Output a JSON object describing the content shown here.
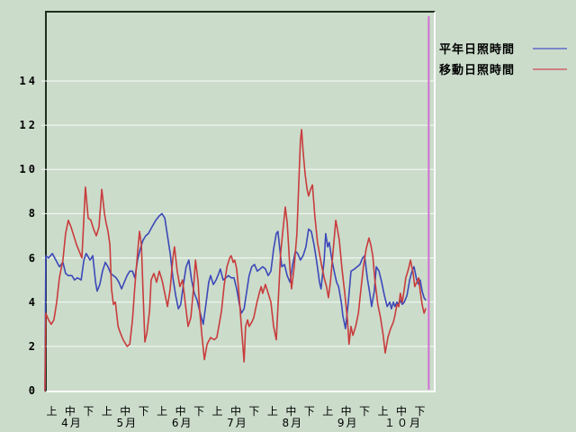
{
  "page": {
    "background": "#cbdccb"
  },
  "legend": {
    "items": [
      {
        "label": "平年日照時間",
        "color": "#7b86c8"
      },
      {
        "label": "移動日照時間",
        "color": "#cf8080"
      }
    ]
  },
  "chart_data": {
    "type": "line",
    "title": "",
    "xlabel": "",
    "ylabel": "",
    "ylim": [
      0,
      17.2
    ],
    "yticks": [
      0,
      2,
      4,
      6,
      8,
      10,
      12,
      14
    ],
    "grid": "horizontal white gridlines at even values",
    "legend_position": "top-right",
    "x_axis": {
      "dekads": [
        "上",
        "中",
        "下"
      ],
      "months": [
        "4月",
        "5月",
        "6月",
        "7月",
        "8月",
        "9月",
        "１０月"
      ],
      "num_ticks": 21
    },
    "marker_line": {
      "color": "#d26fd2",
      "x_frac": 0.987
    },
    "series": [
      {
        "name": "平年日照時間",
        "color": "#3c48b8",
        "points": [
          [
            0,
            0
          ],
          [
            0.002,
            6.1
          ],
          [
            0.009,
            6.0
          ],
          [
            0.019,
            6.2
          ],
          [
            0.025,
            6.0
          ],
          [
            0.037,
            5.6
          ],
          [
            0.046,
            5.8
          ],
          [
            0.053,
            5.3
          ],
          [
            0.06,
            5.2
          ],
          [
            0.069,
            5.2
          ],
          [
            0.076,
            5.0
          ],
          [
            0.083,
            5.1
          ],
          [
            0.093,
            5.0
          ],
          [
            0.1,
            5.9
          ],
          [
            0.106,
            6.2
          ],
          [
            0.116,
            5.9
          ],
          [
            0.123,
            6.1
          ],
          [
            0.13,
            4.9
          ],
          [
            0.134,
            4.5
          ],
          [
            0.141,
            4.8
          ],
          [
            0.148,
            5.4
          ],
          [
            0.155,
            5.8
          ],
          [
            0.162,
            5.6
          ],
          [
            0.169,
            5.3
          ],
          [
            0.176,
            5.2
          ],
          [
            0.183,
            5.1
          ],
          [
            0.19,
            4.9
          ],
          [
            0.197,
            4.6
          ],
          [
            0.204,
            4.9
          ],
          [
            0.211,
            5.2
          ],
          [
            0.218,
            5.4
          ],
          [
            0.225,
            5.4
          ],
          [
            0.231,
            5.1
          ],
          [
            0.238,
            5.9
          ],
          [
            0.245,
            6.4
          ],
          [
            0.252,
            6.8
          ],
          [
            0.259,
            7.0
          ],
          [
            0.266,
            7.1
          ],
          [
            0.275,
            7.4
          ],
          [
            0.285,
            7.7
          ],
          [
            0.294,
            7.9
          ],
          [
            0.301,
            8.0
          ],
          [
            0.308,
            7.8
          ],
          [
            0.315,
            7.0
          ],
          [
            0.322,
            6.2
          ],
          [
            0.329,
            5.1
          ],
          [
            0.336,
            4.3
          ],
          [
            0.343,
            3.7
          ],
          [
            0.349,
            3.9
          ],
          [
            0.356,
            4.8
          ],
          [
            0.363,
            5.6
          ],
          [
            0.37,
            5.9
          ],
          [
            0.377,
            5.0
          ],
          [
            0.384,
            4.4
          ],
          [
            0.391,
            4.1
          ],
          [
            0.398,
            3.6
          ],
          [
            0.407,
            3.0
          ],
          [
            0.414,
            3.9
          ],
          [
            0.421,
            4.9
          ],
          [
            0.426,
            5.2
          ],
          [
            0.433,
            4.8
          ],
          [
            0.44,
            5.0
          ],
          [
            0.447,
            5.3
          ],
          [
            0.451,
            5.5
          ],
          [
            0.458,
            5.0
          ],
          [
            0.465,
            5.1
          ],
          [
            0.472,
            5.2
          ],
          [
            0.479,
            5.1
          ],
          [
            0.486,
            5.1
          ],
          [
            0.493,
            4.6
          ],
          [
            0.5,
            3.9
          ],
          [
            0.505,
            3.5
          ],
          [
            0.512,
            3.7
          ],
          [
            0.519,
            4.5
          ],
          [
            0.525,
            5.2
          ],
          [
            0.532,
            5.6
          ],
          [
            0.539,
            5.7
          ],
          [
            0.546,
            5.4
          ],
          [
            0.553,
            5.5
          ],
          [
            0.56,
            5.6
          ],
          [
            0.567,
            5.5
          ],
          [
            0.574,
            5.2
          ],
          [
            0.581,
            5.4
          ],
          [
            0.588,
            6.4
          ],
          [
            0.595,
            7.1
          ],
          [
            0.599,
            7.2
          ],
          [
            0.604,
            6.4
          ],
          [
            0.609,
            5.6
          ],
          [
            0.616,
            5.7
          ],
          [
            0.623,
            5.2
          ],
          [
            0.63,
            4.9
          ],
          [
            0.637,
            5.7
          ],
          [
            0.644,
            6.3
          ],
          [
            0.65,
            6.2
          ],
          [
            0.657,
            5.9
          ],
          [
            0.664,
            6.1
          ],
          [
            0.671,
            6.5
          ],
          [
            0.678,
            7.3
          ],
          [
            0.685,
            7.2
          ],
          [
            0.692,
            6.6
          ],
          [
            0.699,
            5.8
          ],
          [
            0.706,
            4.9
          ],
          [
            0.71,
            4.6
          ],
          [
            0.718,
            5.9
          ],
          [
            0.722,
            7.1
          ],
          [
            0.727,
            6.5
          ],
          [
            0.731,
            6.7
          ],
          [
            0.738,
            5.9
          ],
          [
            0.745,
            5.3
          ],
          [
            0.75,
            4.9
          ],
          [
            0.755,
            4.7
          ],
          [
            0.762,
            4.0
          ],
          [
            0.766,
            3.4
          ],
          [
            0.773,
            2.8
          ],
          [
            0.78,
            4.0
          ],
          [
            0.787,
            5.4
          ],
          [
            0.796,
            5.5
          ],
          [
            0.803,
            5.6
          ],
          [
            0.81,
            5.7
          ],
          [
            0.817,
            6.0
          ],
          [
            0.822,
            6.1
          ],
          [
            0.829,
            5.1
          ],
          [
            0.836,
            4.3
          ],
          [
            0.84,
            3.8
          ],
          [
            0.847,
            4.5
          ],
          [
            0.852,
            5.6
          ],
          [
            0.859,
            5.4
          ],
          [
            0.866,
            4.9
          ],
          [
            0.873,
            4.3
          ],
          [
            0.88,
            3.8
          ],
          [
            0.887,
            4.0
          ],
          [
            0.891,
            3.7
          ],
          [
            0.896,
            4.0
          ],
          [
            0.9,
            3.8
          ],
          [
            0.905,
            4.0
          ],
          [
            0.91,
            3.9
          ],
          [
            0.914,
            4.1
          ],
          [
            0.919,
            3.9
          ],
          [
            0.924,
            4.0
          ],
          [
            0.931,
            4.3
          ],
          [
            0.938,
            5.0
          ],
          [
            0.944,
            5.4
          ],
          [
            0.949,
            5.6
          ],
          [
            0.956,
            5.0
          ],
          [
            0.961,
            4.8
          ],
          [
            0.965,
            5.0
          ],
          [
            0.97,
            4.5
          ],
          [
            0.975,
            4.2
          ],
          [
            0.979,
            4.1
          ]
        ]
      },
      {
        "name": "移動日照時間",
        "color": "#c93c3c",
        "points": [
          [
            0,
            0
          ],
          [
            0.002,
            3.5
          ],
          [
            0.009,
            3.2
          ],
          [
            0.016,
            3.0
          ],
          [
            0.023,
            3.2
          ],
          [
            0.03,
            4.0
          ],
          [
            0.037,
            5.1
          ],
          [
            0.046,
            5.9
          ],
          [
            0.053,
            7.1
          ],
          [
            0.06,
            7.7
          ],
          [
            0.067,
            7.4
          ],
          [
            0.074,
            7.0
          ],
          [
            0.081,
            6.6
          ],
          [
            0.088,
            6.3
          ],
          [
            0.095,
            6.0
          ],
          [
            0.104,
            9.2
          ],
          [
            0.111,
            7.8
          ],
          [
            0.118,
            7.7
          ],
          [
            0.125,
            7.3
          ],
          [
            0.132,
            7.0
          ],
          [
            0.139,
            7.4
          ],
          [
            0.146,
            9.1
          ],
          [
            0.153,
            8.0
          ],
          [
            0.157,
            7.6
          ],
          [
            0.162,
            7.2
          ],
          [
            0.167,
            6.6
          ],
          [
            0.171,
            4.6
          ],
          [
            0.176,
            3.9
          ],
          [
            0.181,
            4.0
          ],
          [
            0.188,
            2.9
          ],
          [
            0.194,
            2.6
          ],
          [
            0.201,
            2.3
          ],
          [
            0.211,
            2.0
          ],
          [
            0.218,
            2.1
          ],
          [
            0.225,
            3.2
          ],
          [
            0.231,
            4.7
          ],
          [
            0.238,
            6.2
          ],
          [
            0.243,
            7.2
          ],
          [
            0.248,
            6.6
          ],
          [
            0.252,
            4.5
          ],
          [
            0.257,
            2.2
          ],
          [
            0.262,
            2.6
          ],
          [
            0.269,
            3.6
          ],
          [
            0.273,
            5.0
          ],
          [
            0.28,
            5.3
          ],
          [
            0.287,
            4.9
          ],
          [
            0.294,
            5.4
          ],
          [
            0.301,
            5.0
          ],
          [
            0.308,
            4.4
          ],
          [
            0.315,
            3.8
          ],
          [
            0.322,
            4.6
          ],
          [
            0.329,
            6.0
          ],
          [
            0.333,
            6.5
          ],
          [
            0.34,
            5.4
          ],
          [
            0.347,
            4.7
          ],
          [
            0.354,
            5.0
          ],
          [
            0.361,
            3.9
          ],
          [
            0.368,
            2.9
          ],
          [
            0.375,
            3.3
          ],
          [
            0.382,
            4.6
          ],
          [
            0.387,
            5.9
          ],
          [
            0.394,
            4.9
          ],
          [
            0.398,
            3.6
          ],
          [
            0.403,
            2.6
          ],
          [
            0.41,
            1.4
          ],
          [
            0.417,
            2.1
          ],
          [
            0.426,
            2.4
          ],
          [
            0.435,
            2.3
          ],
          [
            0.442,
            2.4
          ],
          [
            0.449,
            3.1
          ],
          [
            0.454,
            3.6
          ],
          [
            0.461,
            4.8
          ],
          [
            0.468,
            5.6
          ],
          [
            0.475,
            6.0
          ],
          [
            0.479,
            6.1
          ],
          [
            0.484,
            5.8
          ],
          [
            0.488,
            5.9
          ],
          [
            0.493,
            5.5
          ],
          [
            0.498,
            4.6
          ],
          [
            0.505,
            2.9
          ],
          [
            0.512,
            1.3
          ],
          [
            0.516,
            2.9
          ],
          [
            0.521,
            3.2
          ],
          [
            0.525,
            2.9
          ],
          [
            0.532,
            3.1
          ],
          [
            0.537,
            3.3
          ],
          [
            0.544,
            3.9
          ],
          [
            0.551,
            4.4
          ],
          [
            0.556,
            4.7
          ],
          [
            0.56,
            4.4
          ],
          [
            0.567,
            4.8
          ],
          [
            0.574,
            4.4
          ],
          [
            0.581,
            4.0
          ],
          [
            0.588,
            2.9
          ],
          [
            0.595,
            2.3
          ],
          [
            0.602,
            4.8
          ],
          [
            0.606,
            6.2
          ],
          [
            0.611,
            7.1
          ],
          [
            0.618,
            8.3
          ],
          [
            0.623,
            7.6
          ],
          [
            0.63,
            5.5
          ],
          [
            0.634,
            4.6
          ],
          [
            0.641,
            5.6
          ],
          [
            0.648,
            7.1
          ],
          [
            0.653,
            9.5
          ],
          [
            0.657,
            11.3
          ],
          [
            0.66,
            11.8
          ],
          [
            0.664,
            10.8
          ],
          [
            0.669,
            9.8
          ],
          [
            0.674,
            9.1
          ],
          [
            0.678,
            8.8
          ],
          [
            0.683,
            9.1
          ],
          [
            0.688,
            9.3
          ],
          [
            0.694,
            7.9
          ],
          [
            0.701,
            6.7
          ],
          [
            0.71,
            5.8
          ],
          [
            0.718,
            5.1
          ],
          [
            0.724,
            4.7
          ],
          [
            0.729,
            4.2
          ],
          [
            0.734,
            4.9
          ],
          [
            0.741,
            6.3
          ],
          [
            0.748,
            7.7
          ],
          [
            0.752,
            7.3
          ],
          [
            0.757,
            6.8
          ],
          [
            0.764,
            5.5
          ],
          [
            0.771,
            4.4
          ],
          [
            0.778,
            3.2
          ],
          [
            0.782,
            2.1
          ],
          [
            0.787,
            2.9
          ],
          [
            0.792,
            2.5
          ],
          [
            0.799,
            2.9
          ],
          [
            0.806,
            3.5
          ],
          [
            0.812,
            4.5
          ],
          [
            0.819,
            5.6
          ],
          [
            0.826,
            6.4
          ],
          [
            0.833,
            6.9
          ],
          [
            0.838,
            6.6
          ],
          [
            0.843,
            6.1
          ],
          [
            0.849,
            4.9
          ],
          [
            0.856,
            3.9
          ],
          [
            0.863,
            3.3
          ],
          [
            0.87,
            2.5
          ],
          [
            0.875,
            1.7
          ],
          [
            0.882,
            2.4
          ],
          [
            0.889,
            2.8
          ],
          [
            0.896,
            3.1
          ],
          [
            0.9,
            3.4
          ],
          [
            0.905,
            3.9
          ],
          [
            0.91,
            3.8
          ],
          [
            0.914,
            4.4
          ],
          [
            0.919,
            4.0
          ],
          [
            0.924,
            4.6
          ],
          [
            0.928,
            5.1
          ],
          [
            0.935,
            5.5
          ],
          [
            0.94,
            5.9
          ],
          [
            0.947,
            5.3
          ],
          [
            0.951,
            4.7
          ],
          [
            0.956,
            4.9
          ],
          [
            0.961,
            5.1
          ],
          [
            0.965,
            4.5
          ],
          [
            0.97,
            3.9
          ],
          [
            0.975,
            3.5
          ],
          [
            0.979,
            3.7
          ]
        ]
      }
    ]
  }
}
